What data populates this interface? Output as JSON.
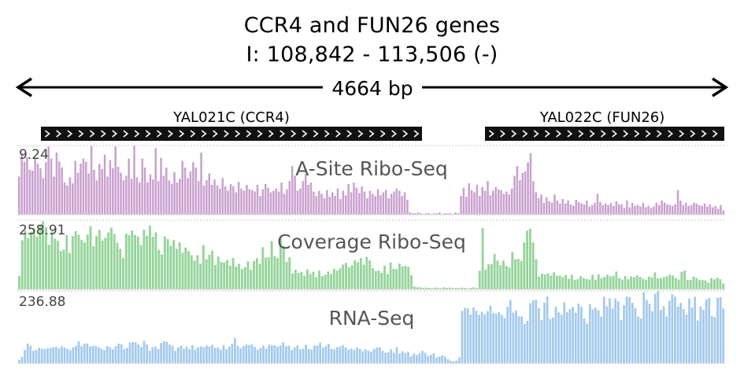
{
  "title": "CCR4 and FUN26 genes",
  "subtitle": "I: 108,842 - 113,506 (-)",
  "scale": {
    "label": "4664 bp"
  },
  "genes": [
    {
      "name": "YAL021C (CCR4)"
    },
    {
      "name": "YAL022C (FUN26)"
    }
  ],
  "colors": {
    "a_site": "#c9a0cf",
    "coverage": "#95d49a",
    "rna": "#a3c9ec",
    "gene_bar": "#111111",
    "track_label": "#555555"
  },
  "chart_data": [
    {
      "type": "bar",
      "title": "A-Site Ribo-Seq",
      "ymax_label": "9.24",
      "ylim": [
        0,
        9.24
      ],
      "values": [
        5.1,
        8.2,
        7.1,
        7.7,
        6.0,
        5.9,
        7.5,
        6.8,
        6.2,
        4.9,
        7.0,
        9.1,
        7.5,
        5.1,
        8.3,
        7.1,
        6.3,
        4.3,
        3.9,
        5.0,
        4.2,
        7.2,
        5.6,
        6.8,
        7.5,
        7.1,
        5.5,
        9.2,
        6.0,
        4.6,
        6.8,
        6.1,
        8.0,
        5.1,
        7.3,
        6.2,
        9.1,
        6.4,
        5.6,
        4.6,
        5.2,
        7.5,
        4.8,
        9.2,
        5.0,
        4.3,
        7.5,
        6.3,
        4.3,
        5.4,
        4.7,
        8.9,
        4.5,
        7.6,
        5.2,
        6.3,
        4.6,
        4.1,
        5.7,
        4.3,
        4.8,
        7.2,
        6.3,
        4.9,
        5.8,
        7.0,
        6.3,
        4.5,
        8.3,
        3.9,
        4.6,
        5.5,
        4.0,
        4.7,
        3.9,
        3.5,
        4.9,
        3.8,
        3.2,
        4.1,
        3.8,
        3.0,
        4.4,
        3.5,
        3.2,
        4.0,
        3.4,
        3.3,
        3.1,
        4.0,
        2.5,
        3.4,
        4.1,
        3.6,
        3.0,
        3.2,
        3.5,
        3.1,
        4.3,
        2.8,
        3.4,
        4.5,
        6.5,
        5.2,
        3.2,
        3.5,
        4.5,
        5.4,
        4.0,
        4.3,
        3.1,
        2.5,
        3.2,
        2.8,
        2.2,
        3.3,
        2.4,
        3.0,
        2.5,
        3.5,
        2.1,
        3.2,
        2.6,
        4.1,
        3.0,
        4.3,
        3.6,
        2.9,
        3.8,
        3.1,
        2.2,
        3.2,
        2.8,
        2.5,
        3.4,
        2.6,
        3.0,
        3.3,
        2.2,
        2.8,
        3.1,
        3.5,
        3.2,
        2.5,
        3.0,
        2.0,
        0.3,
        0.2,
        0.2,
        0.3,
        0.2,
        0.1,
        0.2,
        0.2,
        0.1,
        0.2,
        0.2,
        0.3,
        0.1,
        0.2,
        0.2,
        0.2,
        0.1,
        0.3,
        0.2,
        2.5,
        3.6,
        2.4,
        4.2,
        3.3,
        3.0,
        4.0,
        2.5,
        3.7,
        3.2,
        4.5,
        2.6,
        3.2,
        3.7,
        3.4,
        3.3,
        2.8,
        3.1,
        2.7,
        3.5,
        5.2,
        6.5,
        4.6,
        5.6,
        5.8,
        7.0,
        8.2,
        4.5,
        3.0,
        2.2,
        2.7,
        1.6,
        2.3,
        1.8,
        1.6,
        2.7,
        1.9,
        1.5,
        2.1,
        1.5,
        1.9,
        1.4,
        1.2,
        2.0,
        1.7,
        1.5,
        1.4,
        1.9,
        1.1,
        1.3,
        1.6,
        2.8,
        1.7,
        1.3,
        1.5,
        1.3,
        1.6,
        1.2,
        1.8,
        1.4,
        1.4,
        0.9,
        1.9,
        1.0,
        1.6,
        1.2,
        1.3,
        1.1,
        1.6,
        1.0,
        1.2,
        0.9,
        1.1,
        1.6,
        1.3,
        1.9,
        1.6,
        1.4,
        1.3,
        1.2,
        1.4,
        3.3,
        1.9,
        1.3,
        1.6,
        1.2,
        1.3,
        1.6,
        1.5,
        1.3,
        1.2,
        1.5,
        1.1,
        1.4,
        1.0,
        1.2,
        0.8,
        1.3,
        0.6
      ]
    },
    {
      "type": "bar",
      "title": "Coverage Ribo-Seq",
      "ymax_label": "258.91",
      "ylim": [
        0,
        258.91
      ],
      "values": [
        51,
        184,
        220,
        192,
        215,
        229,
        198,
        238,
        255,
        233,
        167,
        218,
        190,
        182,
        144,
        149,
        204,
        137,
        200,
        218,
        205,
        186,
        176,
        205,
        237,
        162,
        200,
        223,
        183,
        194,
        213,
        231,
        208,
        175,
        152,
        118,
        209,
        203,
        221,
        204,
        198,
        166,
        223,
        201,
        239,
        197,
        213,
        148,
        131,
        198,
        188,
        163,
        185,
        152,
        176,
        138,
        157,
        144,
        128,
        108,
        128,
        97,
        166,
        113,
        130,
        145,
        92,
        123,
        103,
        101,
        110,
        89,
        118,
        86,
        96,
        77,
        84,
        105,
        74,
        106,
        117,
        96,
        158,
        119,
        121,
        181,
        125,
        118,
        189,
        163,
        104,
        120,
        60,
        74,
        62,
        66,
        52,
        75,
        58,
        66,
        46,
        70,
        50,
        55,
        67,
        58,
        77,
        71,
        79,
        93,
        99,
        83,
        90,
        110,
        102,
        118,
        93,
        122,
        108,
        80,
        69,
        71,
        62,
        89,
        58,
        101,
        77,
        77,
        97,
        86,
        88,
        85,
        54,
        11,
        8,
        8,
        6,
        7,
        6,
        5,
        7,
        6,
        5,
        8,
        6,
        7,
        5,
        6,
        5,
        7,
        6,
        4,
        6,
        8,
        5,
        70,
        230,
        74,
        95,
        95,
        133,
        108,
        91,
        108,
        88,
        82,
        140,
        113,
        114,
        107,
        176,
        220,
        227,
        176,
        113,
        48,
        59,
        56,
        60,
        52,
        64,
        51,
        52,
        46,
        54,
        40,
        55,
        36,
        39,
        50,
        43,
        39,
        37,
        55,
        35,
        57,
        42,
        47,
        55,
        49,
        51,
        67,
        43,
        37,
        50,
        38,
        49,
        46,
        53,
        47,
        40,
        36,
        48,
        45,
        64,
        42,
        42,
        46,
        49,
        55,
        52,
        43,
        37,
        66,
        71,
        35,
        35,
        48,
        43,
        35,
        35,
        34,
        25,
        43,
        38,
        44,
        38,
        22
      ]
    },
    {
      "type": "bar",
      "title": "RNA-Seq",
      "ymax_label": "236.88",
      "ylim": [
        0,
        236.88
      ],
      "values": [
        12,
        21,
        44,
        65,
        58,
        41,
        44,
        51,
        48,
        47,
        49,
        51,
        53,
        55,
        49,
        56,
        52,
        48,
        43,
        53,
        58,
        72,
        56,
        64,
        65,
        55,
        58,
        57,
        53,
        48,
        44,
        56,
        53,
        46,
        56,
        65,
        63,
        47,
        51,
        68,
        70,
        69,
        62,
        54,
        74,
        62,
        42,
        53,
        55,
        47,
        67,
        72,
        71,
        62,
        58,
        41,
        52,
        58,
        48,
        55,
        47,
        60,
        46,
        53,
        56,
        53,
        58,
        55,
        61,
        51,
        52,
        45,
        60,
        46,
        55,
        64,
        83,
        58,
        49,
        57,
        62,
        60,
        62,
        54,
        45,
        50,
        58,
        48,
        61,
        59,
        59,
        55,
        59,
        69,
        56,
        58,
        44,
        53,
        59,
        47,
        48,
        61,
        47,
        45,
        59,
        58,
        68,
        51,
        57,
        64,
        48,
        46,
        53,
        55,
        60,
        52,
        45,
        48,
        44,
        53,
        48,
        40,
        46,
        41,
        38,
        47,
        52,
        53,
        41,
        35,
        37,
        47,
        35,
        53,
        32,
        40,
        34,
        38,
        23,
        32,
        27,
        33,
        41,
        35,
        24,
        28,
        33,
        19,
        23,
        26,
        22,
        14,
        9,
        7,
        9,
        20,
        172,
        182,
        180,
        160,
        183,
        172,
        159,
        169,
        161,
        171,
        189,
        165,
        163,
        167,
        159,
        148,
        185,
        207,
        166,
        173,
        154,
        153,
        129,
        139,
        197,
        207,
        208,
        181,
        142,
        199,
        219,
        145,
        150,
        186,
        167,
        160,
        200,
        168,
        178,
        185,
        166,
        196,
        185,
        147,
        130,
        194,
        177,
        182,
        174,
        153,
        218,
        187,
        213,
        180,
        212,
        203,
        142,
        191,
        219,
        217,
        198,
        181,
        153,
        147,
        233,
        208,
        195,
        171,
        228,
        236,
        175,
        187,
        154,
        205,
        227,
        219,
        186,
        198,
        178,
        160,
        212,
        183,
        218,
        140,
        186,
        175,
        209,
        214,
        155,
        152,
        215,
        217,
        180
      ]
    }
  ]
}
